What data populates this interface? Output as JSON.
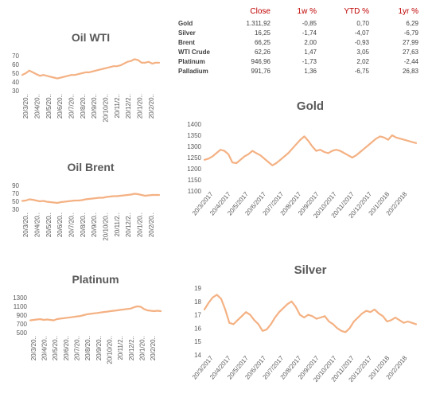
{
  "table": {
    "headers": [
      "",
      "Close",
      "1w %",
      "YTD %",
      "1yr %"
    ],
    "rows": [
      {
        "name": "Gold",
        "close": "1.311,92",
        "w1": "-0,85",
        "ytd": "0,70",
        "yr1": "6,29"
      },
      {
        "name": "Silver",
        "close": "16,25",
        "w1": "-1,74",
        "ytd": "-4,07",
        "yr1": "-6,79"
      },
      {
        "name": "Brent",
        "close": "66,25",
        "w1": "2,00",
        "ytd": "-0,93",
        "yr1": "27,99"
      },
      {
        "name": "WTI Crude",
        "close": "62,26",
        "w1": "1,47",
        "ytd": "3,05",
        "yr1": "27,63"
      },
      {
        "name": "Platinum",
        "close": "946,96",
        "w1": "-1,73",
        "ytd": "2,02",
        "yr1": "-2,44"
      },
      {
        "name": "Palladium",
        "close": "991,76",
        "w1": "1,36",
        "ytd": "-6,75",
        "yr1": "26,83"
      }
    ]
  },
  "line_color": "#f4b183",
  "chart_data": [
    {
      "id": "oilwti",
      "type": "line",
      "title": "Oil WTI",
      "ylim": [
        30,
        70
      ],
      "yticks": [
        30,
        40,
        50,
        60,
        70
      ],
      "xticks": [
        "20/3/20..",
        "20/4/20..",
        "20/5/20..",
        "20/6/20..",
        "20/7/20..",
        "20/8/20..",
        "20/9/20..",
        "20/10/20..",
        "20/11/2..",
        "20/12/2..",
        "20/1/20..",
        "20/2/20.."
      ],
      "series": [
        {
          "values": [
            48,
            50,
            53,
            51,
            49,
            47,
            48,
            47,
            46,
            45,
            44,
            45,
            46,
            47,
            48,
            48,
            49,
            50,
            51,
            51,
            52,
            53,
            54,
            55,
            56,
            57,
            58,
            58,
            59,
            61,
            63,
            64,
            66,
            65,
            62,
            62,
            63,
            61,
            62,
            62
          ]
        }
      ]
    },
    {
      "id": "oilbrent",
      "type": "line",
      "title": "Oil Brent",
      "ylim": [
        30,
        90
      ],
      "yticks": [
        30,
        50,
        70,
        90
      ],
      "xticks": [
        "20/3/20..",
        "20/4/20..",
        "20/5/20..",
        "20/6/20..",
        "20/7/20..",
        "20/8/20..",
        "20/9/20..",
        "20/10/20..",
        "20/11/2..",
        "20/12/2..",
        "20/1/20..",
        "20/2/20.."
      ],
      "series": [
        {
          "values": [
            51,
            52,
            55,
            54,
            52,
            50,
            51,
            49,
            48,
            47,
            46,
            48,
            49,
            50,
            51,
            52,
            52,
            53,
            55,
            56,
            57,
            58,
            59,
            59,
            61,
            62,
            63,
            63,
            64,
            65,
            66,
            67,
            69,
            68,
            66,
            64,
            65,
            66,
            66,
            66
          ]
        }
      ]
    },
    {
      "id": "platinum",
      "type": "line",
      "title": "Platinum",
      "ylim": [
        500,
        1300
      ],
      "yticks": [
        500,
        700,
        900,
        1100,
        1300
      ],
      "xticks": [
        "20/3/20..",
        "20/4/20..",
        "20/5/20..",
        "20/6/20..",
        "20/7/20..",
        "20/8/20..",
        "20/9/20..",
        "20/10/20..",
        "20/11/2..",
        "20/12/2..",
        "20/1/20..",
        "20/2/20.."
      ],
      "series": [
        {
          "values": [
            780,
            790,
            800,
            810,
            790,
            800,
            790,
            780,
            810,
            820,
            830,
            840,
            850,
            860,
            870,
            880,
            900,
            920,
            930,
            940,
            950,
            960,
            970,
            980,
            990,
            1000,
            1010,
            1020,
            1030,
            1040,
            1050,
            1080,
            1100,
            1090,
            1040,
            1010,
            1000,
            990,
            1000,
            990
          ]
        }
      ]
    },
    {
      "id": "gold",
      "type": "line",
      "title": "Gold",
      "ylim": [
        1100,
        1400
      ],
      "yticks": [
        1100,
        1150,
        1200,
        1250,
        1300,
        1350,
        1400
      ],
      "xticks": [
        "20/3/2017",
        "20/4/2017",
        "20/5/2017",
        "20/6/2017",
        "20/7/2017",
        "20/8/2017",
        "20/9/2017",
        "20/10/2017",
        "20/11/2017",
        "20/12/2017",
        "20/1/2018",
        "20/2/2018"
      ],
      "series": [
        {
          "values": [
            1240,
            1245,
            1255,
            1270,
            1285,
            1280,
            1265,
            1228,
            1225,
            1240,
            1255,
            1265,
            1280,
            1270,
            1260,
            1245,
            1230,
            1215,
            1225,
            1240,
            1255,
            1270,
            1290,
            1310,
            1330,
            1345,
            1325,
            1300,
            1280,
            1285,
            1275,
            1270,
            1280,
            1285,
            1280,
            1270,
            1260,
            1250,
            1260,
            1275,
            1290,
            1305,
            1320,
            1335,
            1345,
            1340,
            1330,
            1350,
            1340,
            1335,
            1330,
            1325,
            1320,
            1315
          ]
        }
      ]
    },
    {
      "id": "silver",
      "type": "line",
      "title": "Silver",
      "ylim": [
        14,
        19
      ],
      "yticks": [
        14,
        15,
        16,
        17,
        18,
        19
      ],
      "xticks": [
        "20/3/2017",
        "20/4/2017",
        "20/5/2017",
        "20/6/2017",
        "20/7/2017",
        "20/8/2017",
        "20/9/2017",
        "20/10/2017",
        "20/11/2017",
        "20/12/2017",
        "20/1/2018",
        "20/2/2018"
      ],
      "series": [
        {
          "values": [
            17.4,
            17.9,
            18.3,
            18.5,
            18.2,
            17.4,
            16.4,
            16.3,
            16.6,
            16.9,
            17.2,
            17.0,
            16.6,
            16.3,
            15.8,
            15.9,
            16.3,
            16.8,
            17.2,
            17.5,
            17.8,
            18.0,
            17.6,
            17.0,
            16.8,
            17.0,
            16.9,
            16.7,
            16.8,
            16.9,
            16.5,
            16.3,
            16.0,
            15.8,
            15.7,
            16.0,
            16.5,
            16.8,
            17.1,
            17.3,
            17.2,
            17.4,
            17.1,
            16.9,
            16.5,
            16.6,
            16.8,
            16.6,
            16.4,
            16.5,
            16.4,
            16.3
          ]
        }
      ]
    }
  ]
}
